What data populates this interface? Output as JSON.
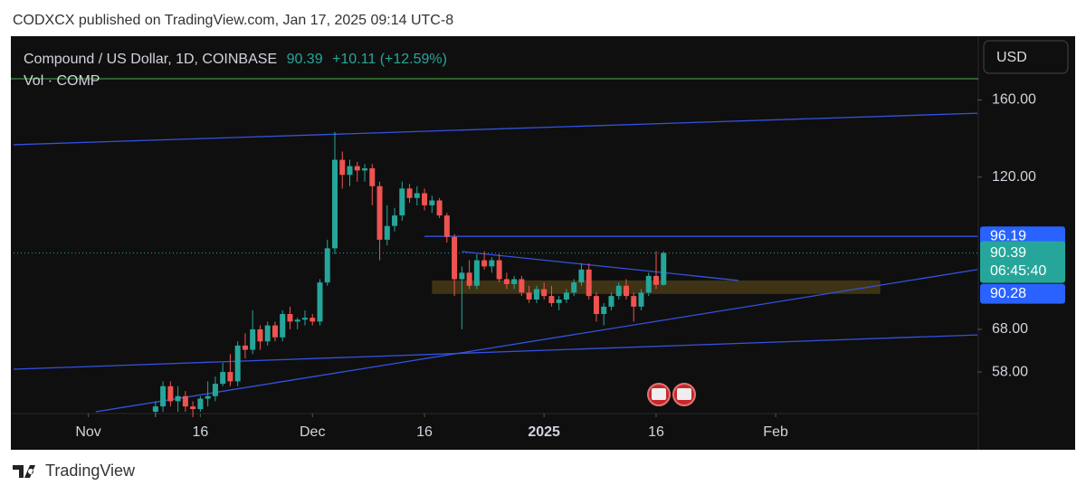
{
  "header": {
    "text": "CODXCX published on TradingView.com, Jan 17, 2025 09:14 UTC-8"
  },
  "footer": {
    "brand": "TradingView"
  },
  "chart_data": {
    "type": "candlestick",
    "title": "Compound / US Dollar, 1D, COINBASE",
    "last_price": 90.39,
    "change_label": "+10.11 (+12.59%)",
    "volume_label": "Vol · COMP",
    "currency": "USD",
    "countdown": "06:45:40",
    "x": [
      "2024-11-10",
      "2024-11-11",
      "2024-11-12",
      "2024-11-13",
      "2024-11-14",
      "2024-11-15",
      "2024-11-16",
      "2024-11-17",
      "2024-11-18",
      "2024-11-19",
      "2024-11-20",
      "2024-11-21",
      "2024-11-22",
      "2024-11-23",
      "2024-11-24",
      "2024-11-25",
      "2024-11-26",
      "2024-11-27",
      "2024-11-28",
      "2024-11-29",
      "2024-11-30",
      "2024-12-01",
      "2024-12-02",
      "2024-12-03",
      "2024-12-04",
      "2024-12-05",
      "2024-12-06",
      "2024-12-07",
      "2024-12-08",
      "2024-12-09",
      "2024-12-10",
      "2024-12-11",
      "2024-12-12",
      "2024-12-13",
      "2024-12-14",
      "2024-12-15",
      "2024-12-16",
      "2024-12-17",
      "2024-12-18",
      "2024-12-19",
      "2024-12-20",
      "2024-12-21",
      "2024-12-22",
      "2024-12-23",
      "2024-12-24",
      "2024-12-25",
      "2024-12-26",
      "2024-12-27",
      "2024-12-28",
      "2024-12-29",
      "2024-12-30",
      "2024-12-31",
      "2025-01-01",
      "2025-01-02",
      "2025-01-03",
      "2025-01-04",
      "2025-01-05",
      "2025-01-06",
      "2025-01-07",
      "2025-01-08",
      "2025-01-09",
      "2025-01-10",
      "2025-01-11",
      "2025-01-12",
      "2025-01-13",
      "2025-01-14",
      "2025-01-15",
      "2025-01-16",
      "2025-01-17"
    ],
    "open": [
      50,
      51,
      55,
      52,
      53,
      51,
      50.5,
      52.5,
      53,
      55.5,
      58,
      56,
      64,
      63,
      68,
      65,
      69,
      66,
      72,
      70,
      70.5,
      71,
      70,
      81,
      92,
      128,
      121,
      125,
      123,
      124,
      116,
      95,
      100,
      104,
      115,
      111,
      113,
      108,
      110,
      104,
      96,
      82,
      84,
      80,
      88,
      86,
      88,
      82,
      80.5,
      82,
      78,
      76,
      79,
      77,
      75,
      76,
      78,
      81,
      85,
      77,
      72,
      74,
      77,
      80,
      77,
      74,
      78,
      83,
      80.28
    ],
    "high": [
      52,
      56,
      56,
      55,
      54,
      52,
      53,
      56,
      57,
      60,
      62,
      65,
      67,
      73,
      69,
      70,
      70,
      73,
      74,
      71,
      73,
      72,
      82,
      95,
      142,
      132,
      128,
      127,
      126,
      126,
      118,
      108,
      107,
      118,
      117,
      116,
      115,
      112,
      111,
      105,
      97,
      86,
      88,
      90,
      91,
      89,
      90,
      84,
      83,
      83,
      80,
      80,
      81,
      80,
      77,
      79,
      82,
      87,
      87,
      78,
      75,
      78,
      81,
      82,
      78,
      79,
      84,
      91,
      91
    ],
    "low": [
      49,
      50,
      51,
      50,
      50,
      49,
      50,
      51,
      52,
      55,
      55,
      55,
      61,
      62,
      63,
      64,
      65,
      65,
      68,
      68,
      69,
      69,
      69,
      80,
      90,
      115,
      116,
      118,
      118,
      108,
      88,
      93,
      98,
      102,
      109,
      108,
      106,
      105,
      103,
      94,
      77,
      68,
      79,
      79,
      85,
      84,
      81,
      79,
      79,
      77,
      75,
      75,
      76,
      74,
      73,
      75,
      77,
      80,
      76,
      70,
      69,
      73,
      76,
      76,
      70,
      73,
      77,
      79,
      80
    ],
    "close": [
      51,
      55,
      52,
      53,
      51,
      50.5,
      52.5,
      53,
      55.5,
      58,
      56,
      64,
      63,
      68,
      65,
      69,
      66,
      72,
      70,
      70.5,
      71,
      70,
      81,
      92,
      128,
      121,
      125,
      123,
      124,
      116,
      95,
      100,
      104,
      115,
      111,
      113,
      108,
      110,
      104,
      96,
      82,
      84,
      80,
      88,
      86,
      88,
      82,
      80.5,
      82,
      78,
      76,
      79,
      77,
      75,
      76,
      78,
      81,
      85,
      77,
      72,
      74,
      77,
      80,
      77,
      74,
      78,
      83,
      80.28,
      90.39
    ],
    "up_color": "#26a69a",
    "down_color": "#ef5350",
    "line_color": "#3452e0",
    "xlim": [
      "2024-10-22",
      "2025-02-28"
    ],
    "xticks": [
      {
        "value": "2024-11-01",
        "label": "Nov"
      },
      {
        "value": "2024-11-16",
        "label": "16"
      },
      {
        "value": "2024-12-01",
        "label": "Dec"
      },
      {
        "value": "2024-12-16",
        "label": "16"
      },
      {
        "value": "2025-01-01",
        "label": "2025"
      },
      {
        "value": "2025-01-16",
        "label": "16"
      },
      {
        "value": "2025-02-01",
        "label": "Feb"
      }
    ],
    "ylim": [
      50,
      203
    ],
    "yticks": [
      {
        "value": 160,
        "label": "160.00"
      },
      {
        "value": 120,
        "label": "120.00"
      },
      {
        "value": 68,
        "label": "68.00"
      },
      {
        "value": 58,
        "label": "58.00"
      }
    ],
    "log_scale": true,
    "price_levels": [
      96.19,
      90.28
    ],
    "trend_lines": [
      {
        "x": [
          "2024-10-22",
          "2025-02-28"
        ],
        "y": [
          135.4,
          152.3
        ]
      },
      {
        "x": [
          "2024-10-22",
          "2025-02-28"
        ],
        "y": [
          58.6,
          66.6
        ]
      },
      {
        "x": [
          "2024-11-02",
          "2025-02-28"
        ],
        "y": [
          50,
          85
        ]
      },
      {
        "x": [
          "2024-12-21",
          "2025-01-27"
        ],
        "y": [
          90.9,
          81.6
        ]
      }
    ],
    "zone": {
      "x": [
        "2024-12-17",
        "2025-02-15"
      ],
      "y": [
        77.6,
        81.6
      ]
    }
  }
}
